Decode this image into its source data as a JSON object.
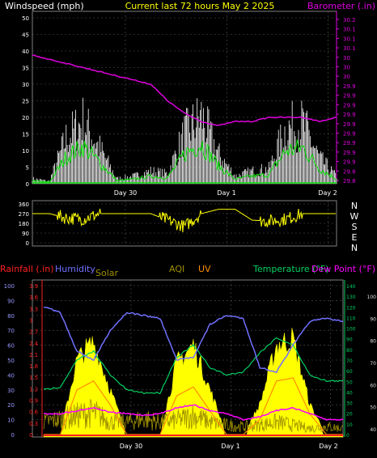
{
  "header": {
    "left_title": "Windspeed (mph)",
    "center_title": "Current last 72 hours May 2 2025",
    "right_title": "Barometer (.in)"
  },
  "colors": {
    "background": "#000000",
    "plot_bg": "#000000",
    "grid": "#555555",
    "axis": "#d8d8d8",
    "title_yellow": "#ffff00",
    "barometer": "#e000e0",
    "wind": "#ffffff",
    "wind_avg": "#00e000",
    "direction": "#ffff00",
    "rainfall": "#ff2020",
    "humidity": "#7070ff",
    "solar": "#ffff00",
    "aqi": "#a09000",
    "uv": "#ff8c00",
    "temperature": "#00d060",
    "dewpoint": "#ff00ff"
  },
  "x_labels": [
    "Day 30",
    "Day 1",
    "Day 2"
  ],
  "chart_data": [
    {
      "type": "line",
      "name": "wind-barometer",
      "left_axis": {
        "label": "Windspeed (mph)",
        "ylim": [
          0,
          50
        ],
        "ticks": [
          "0",
          "5",
          "10",
          "15",
          "20",
          "25",
          "30",
          "35",
          "40",
          "45",
          "50"
        ]
      },
      "right_axis": {
        "label": "Barometer (.in)",
        "ylim": [
          29.8,
          30.2
        ],
        "ticks": [
          "29.8",
          "29.8",
          "29.9",
          "29.9",
          "29.9",
          "29.9",
          "29.9",
          "29.9",
          "29.9",
          "29.9",
          "29.9",
          "30",
          "30",
          "30",
          "30.1",
          "30.1",
          "30.1",
          "30.2"
        ]
      },
      "x_categories": [
        "Day 30",
        "Day 1",
        "Day 2"
      ],
      "series": [
        {
          "name": "Barometer (.in)",
          "x": [
            0,
            4,
            8,
            12,
            16,
            20,
            24,
            28,
            32,
            36,
            40,
            44,
            48,
            52,
            56,
            60,
            64,
            68,
            72
          ],
          "values": [
            30.11,
            30.1,
            30.09,
            30.08,
            30.07,
            30.06,
            30.05,
            30.04,
            30.0,
            29.97,
            29.95,
            29.94,
            29.95,
            29.95,
            29.96,
            29.96,
            29.96,
            29.95,
            29.96
          ]
        },
        {
          "name": "Windspeed (mph)",
          "x": [
            0,
            4,
            8,
            12,
            16,
            20,
            24,
            28,
            32,
            36,
            40,
            44,
            48,
            52,
            56,
            60,
            64,
            68,
            72
          ],
          "values": [
            2,
            1,
            18,
            25,
            14,
            2,
            3,
            5,
            4,
            20,
            27,
            12,
            3,
            5,
            6,
            22,
            24,
            10,
            3
          ]
        }
      ]
    },
    {
      "type": "scatter",
      "name": "wind-direction",
      "left_axis": {
        "ylim": [
          0,
          360
        ],
        "ticks": [
          "0",
          "90",
          "180",
          "270",
          "360"
        ]
      },
      "right_labels": [
        "N",
        "W",
        "S",
        "E",
        "N"
      ],
      "x": [
        0,
        4,
        8,
        12,
        16,
        20,
        24,
        28,
        32,
        36,
        40,
        44,
        48,
        52,
        56,
        60,
        64,
        68,
        72
      ],
      "values": [
        270,
        270,
        230,
        220,
        270,
        270,
        270,
        270,
        210,
        150,
        270,
        310,
        310,
        210,
        200,
        220,
        270,
        270,
        270
      ]
    },
    {
      "type": "line",
      "name": "weather-multi",
      "legend": [
        "Rainfall (.in)",
        "Humidity",
        "Solar",
        "AQI",
        "UV",
        "Temperature (°F)",
        "Dew Point (°F)"
      ],
      "left_axis_humidity": {
        "ylim": [
          0,
          100
        ],
        "ticks": [
          "0",
          "10",
          "20",
          "30",
          "40",
          "50",
          "60",
          "70",
          "80",
          "90",
          "100"
        ]
      },
      "left_axis_rain": {
        "ylim": [
          0,
          3.9
        ],
        "ticks": [
          "0",
          "0.3",
          "0.6",
          "0.9",
          "1.2",
          "1.5",
          "1.8",
          "2.1",
          "2.4",
          "2.7",
          "3",
          "3.3",
          "3.6",
          "3.9"
        ]
      },
      "right_axis_temp": {
        "ylim": [
          0,
          140
        ],
        "ticks": [
          "0",
          "10",
          "20",
          "30",
          "40",
          "50",
          "60",
          "70",
          "80",
          "90",
          "100",
          "110",
          "120",
          "130",
          "140"
        ]
      },
      "right_axis_dew": {
        "ylim": [
          0,
          100
        ],
        "ticks": [
          "40",
          "50",
          "60",
          "70",
          "80",
          "90",
          "100"
        ]
      },
      "x_categories": [
        "Day 30",
        "Day 1",
        "Day 2"
      ],
      "series": [
        {
          "name": "Humidity",
          "x": [
            0,
            4,
            8,
            12,
            16,
            20,
            24,
            28,
            32,
            36,
            40,
            44,
            48,
            52,
            56,
            60,
            64,
            68,
            72
          ],
          "values": [
            86,
            82,
            56,
            50,
            70,
            82,
            80,
            78,
            50,
            52,
            74,
            80,
            78,
            45,
            42,
            60,
            76,
            78,
            76
          ]
        },
        {
          "name": "Temperature (°F)",
          "x": [
            0,
            4,
            8,
            12,
            16,
            20,
            24,
            28,
            32,
            36,
            40,
            44,
            48,
            52,
            56,
            60,
            64,
            68,
            72
          ],
          "values": [
            30,
            32,
            50,
            56,
            40,
            30,
            28,
            28,
            52,
            60,
            45,
            40,
            42,
            55,
            65,
            60,
            40,
            36,
            36
          ]
        },
        {
          "name": "Dew Point (°F)",
          "x": [
            0,
            4,
            8,
            12,
            16,
            20,
            24,
            28,
            32,
            36,
            40,
            44,
            48,
            52,
            56,
            60,
            64,
            68,
            72
          ],
          "values": [
            14,
            14,
            16,
            18,
            15,
            14,
            13,
            14,
            18,
            20,
            16,
            14,
            10,
            12,
            16,
            18,
            14,
            10,
            10
          ]
        },
        {
          "name": "Solar",
          "x": [
            0,
            4,
            8,
            12,
            16,
            20,
            24,
            28,
            32,
            36,
            40,
            44,
            48,
            52,
            56,
            60,
            64,
            68,
            72
          ],
          "values": [
            0,
            0,
            50,
            62,
            30,
            0,
            0,
            0,
            48,
            60,
            30,
            0,
            0,
            20,
            60,
            64,
            20,
            0,
            0
          ]
        },
        {
          "name": "UV",
          "x": [
            0,
            4,
            8,
            12,
            16,
            20,
            24,
            28,
            32,
            36,
            40,
            44,
            48,
            52,
            56,
            60,
            64,
            68,
            72
          ],
          "values": [
            0,
            0,
            30,
            36,
            20,
            0,
            0,
            0,
            26,
            32,
            16,
            0,
            0,
            10,
            36,
            38,
            14,
            0,
            0
          ]
        },
        {
          "name": "AQI",
          "x": [
            0,
            4,
            8,
            12,
            16,
            20,
            24,
            28,
            32,
            36,
            40,
            44,
            48,
            52,
            56,
            60,
            64,
            68,
            72
          ],
          "values": [
            8,
            10,
            12,
            14,
            8,
            8,
            10,
            8,
            9,
            12,
            8,
            6,
            5,
            6,
            8,
            6,
            4,
            5,
            4
          ]
        },
        {
          "name": "Rainfall (.in)",
          "x": [
            0,
            72
          ],
          "values": [
            0,
            0
          ]
        }
      ]
    }
  ]
}
